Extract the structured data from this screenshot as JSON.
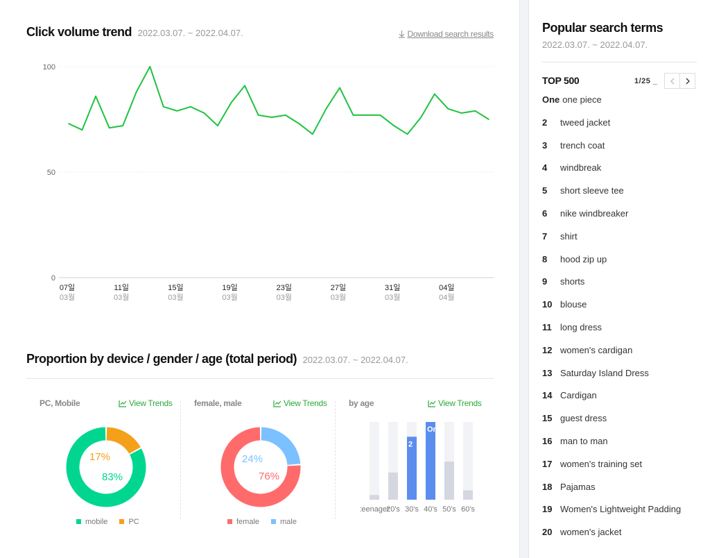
{
  "trend": {
    "title": "Click volume trend",
    "date_range": "2022.03.07. ~ 2022.04.07.",
    "download_label": "Download search results"
  },
  "chart_data": [
    {
      "type": "line",
      "title": "Click volume trend",
      "x": [
        "03-07",
        "03-08",
        "03-09",
        "03-10",
        "03-11",
        "03-12",
        "03-13",
        "03-14",
        "03-15",
        "03-16",
        "03-17",
        "03-18",
        "03-19",
        "03-20",
        "03-21",
        "03-22",
        "03-23",
        "03-24",
        "03-25",
        "03-26",
        "03-27",
        "03-28",
        "03-29",
        "03-30",
        "03-31",
        "04-01",
        "04-02",
        "04-03",
        "04-04",
        "04-05",
        "04-06",
        "04-07"
      ],
      "series": [
        {
          "values": [
            73,
            70,
            86,
            71,
            72,
            88,
            100,
            81,
            79,
            81,
            78,
            72,
            83,
            91,
            77,
            76,
            77,
            73,
            68,
            80,
            90,
            77,
            77,
            77,
            72,
            68,
            76,
            87,
            80,
            78,
            79,
            75
          ]
        }
      ],
      "ylim": [
        0,
        100
      ],
      "yticks": [
        "100",
        "50",
        "0"
      ],
      "xticks": [
        {
          "day": "07일",
          "month": "03월"
        },
        {
          "day": "11일",
          "month": "03월"
        },
        {
          "day": "15일",
          "month": "03월"
        },
        {
          "day": "19일",
          "month": "03월"
        },
        {
          "day": "23일",
          "month": "03월"
        },
        {
          "day": "27일",
          "month": "03월"
        },
        {
          "day": "31일",
          "month": "03월"
        },
        {
          "day": "04일",
          "month": "04월"
        }
      ],
      "grid": true,
      "color": "#1fc240"
    },
    {
      "type": "pie",
      "title": "PC, Mobile",
      "slices": [
        {
          "name": "mobile",
          "value": 83,
          "label": "83%",
          "color": "#00d690"
        },
        {
          "name": "PC",
          "value": 17,
          "label": "17%",
          "color": "#f5a01a"
        }
      ]
    },
    {
      "type": "pie",
      "title": "female, male",
      "slices": [
        {
          "name": "female",
          "value": 76,
          "label": "76%",
          "color": "#ff6b6b"
        },
        {
          "name": "male",
          "value": 24,
          "label": "24%",
          "color": "#7cc1ff"
        }
      ]
    },
    {
      "type": "bar",
      "title": "by age",
      "categories": [
        "teenager",
        "20's",
        "30's",
        "40's",
        "50's",
        "60's"
      ],
      "values": [
        6,
        35,
        81,
        100,
        49,
        12
      ],
      "highlight": [
        false,
        false,
        true,
        true,
        false,
        false
      ],
      "rank_labels": [
        "",
        "",
        "2",
        "One",
        "",
        ""
      ],
      "ylim": [
        0,
        100
      ]
    }
  ],
  "proportion": {
    "title": "Proportion by device / gender / age (total period)",
    "date_range": "2022.03.07. ~ 2022.04.07.",
    "view_trends_label": "View Trends",
    "panels": [
      {
        "title": "PC, Mobile",
        "legend": [
          "mobile",
          "PC"
        ]
      },
      {
        "title": "female, male",
        "legend": [
          "female",
          "male"
        ]
      },
      {
        "title": "by age"
      }
    ]
  },
  "colors": {
    "mobile": "#00d690",
    "pc": "#f5a01a",
    "female": "#ff6b6b",
    "male": "#7cc1ff",
    "bar_highlight": "#5b8def",
    "bar_normal": "#d4d7e0",
    "bar_track": "#f2f3f6",
    "link_green": "#2aaa3a"
  },
  "icons": {
    "download": "download-icon",
    "trend": "trend-chart-icon",
    "prev": "chevron-left-icon",
    "next": "chevron-right-icon"
  },
  "sidebar": {
    "title": "Popular search terms",
    "date_range": "2022.03.07. ~ 2022.04.07.",
    "top_label": "TOP 500",
    "pager": "1/25 _",
    "items": [
      {
        "rank": "One",
        "term": "one piece"
      },
      {
        "rank": "2",
        "term": "tweed jacket"
      },
      {
        "rank": "3",
        "term": "trench coat"
      },
      {
        "rank": "4",
        "term": "windbreak"
      },
      {
        "rank": "5",
        "term": "short sleeve tee"
      },
      {
        "rank": "6",
        "term": "nike windbreaker"
      },
      {
        "rank": "7",
        "term": "shirt"
      },
      {
        "rank": "8",
        "term": "hood zip up"
      },
      {
        "rank": "9",
        "term": "shorts"
      },
      {
        "rank": "10",
        "term": "blouse"
      },
      {
        "rank": "11",
        "term": "long dress"
      },
      {
        "rank": "12",
        "term": "women's cardigan"
      },
      {
        "rank": "13",
        "term": "Saturday Island Dress"
      },
      {
        "rank": "14",
        "term": "Cardigan"
      },
      {
        "rank": "15",
        "term": "guest dress"
      },
      {
        "rank": "16",
        "term": "man to man"
      },
      {
        "rank": "17",
        "term": "women's training set"
      },
      {
        "rank": "18",
        "term": "Pajamas"
      },
      {
        "rank": "19",
        "term": "Women's Lightweight Padding"
      },
      {
        "rank": "20",
        "term": "women's jacket"
      }
    ]
  }
}
